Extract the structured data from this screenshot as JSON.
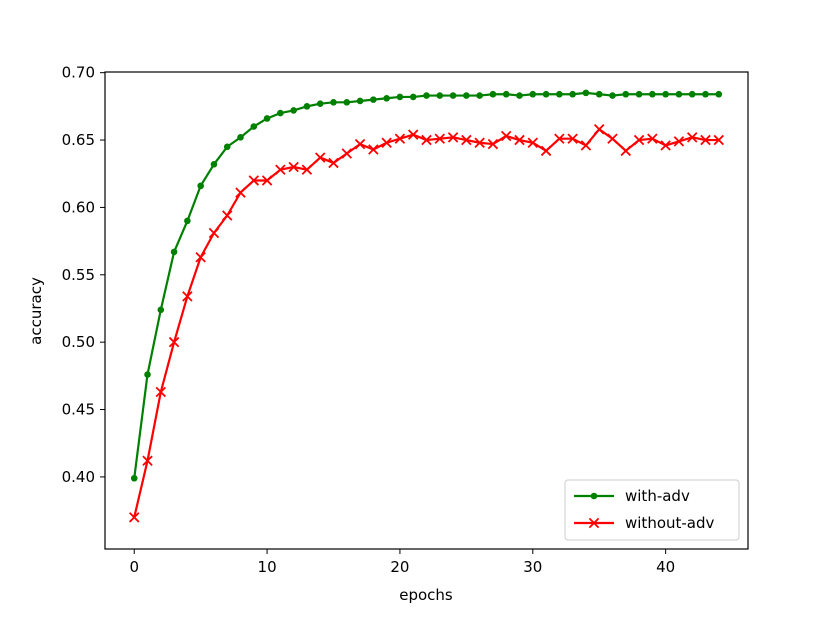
{
  "chart_data": {
    "type": "line",
    "title": "",
    "xlabel": "epochs",
    "ylabel": "accuracy",
    "xlim": [
      -2.2,
      46.2
    ],
    "ylim": [
      0.3465,
      0.7005
    ],
    "xticks": [
      0,
      10,
      20,
      30,
      40
    ],
    "xtick_labels": [
      "0",
      "10",
      "20",
      "30",
      "40"
    ],
    "yticks": [
      0.4,
      0.45,
      0.5,
      0.55,
      0.6,
      0.65,
      0.7
    ],
    "ytick_labels": [
      "0.40",
      "0.45",
      "0.50",
      "0.55",
      "0.60",
      "0.65",
      "0.70"
    ],
    "grid": false,
    "legend_position": "bottom-right",
    "x": [
      0,
      1,
      2,
      3,
      4,
      5,
      6,
      7,
      8,
      9,
      10,
      11,
      12,
      13,
      14,
      15,
      16,
      17,
      18,
      19,
      20,
      21,
      22,
      23,
      24,
      25,
      26,
      27,
      28,
      29,
      30,
      31,
      32,
      33,
      34,
      35,
      36,
      37,
      38,
      39,
      40,
      41,
      42,
      43,
      44
    ],
    "series": [
      {
        "name": "with-adv",
        "color": "#008000",
        "marker": "dot",
        "values": [
          0.399,
          0.476,
          0.524,
          0.567,
          0.59,
          0.616,
          0.632,
          0.645,
          0.652,
          0.66,
          0.666,
          0.67,
          0.672,
          0.675,
          0.677,
          0.678,
          0.678,
          0.679,
          0.68,
          0.681,
          0.682,
          0.682,
          0.683,
          0.683,
          0.683,
          0.683,
          0.683,
          0.684,
          0.684,
          0.683,
          0.684,
          0.684,
          0.684,
          0.684,
          0.685,
          0.684,
          0.683,
          0.684,
          0.684,
          0.684,
          0.684,
          0.684,
          0.684,
          0.684,
          0.684
        ]
      },
      {
        "name": "without-adv",
        "color": "#ff0000",
        "marker": "x",
        "values": [
          0.37,
          0.412,
          0.463,
          0.5,
          0.534,
          0.563,
          0.581,
          0.594,
          0.611,
          0.62,
          0.62,
          0.628,
          0.63,
          0.628,
          0.637,
          0.633,
          0.64,
          0.647,
          0.643,
          0.648,
          0.651,
          0.654,
          0.65,
          0.651,
          0.652,
          0.65,
          0.648,
          0.647,
          0.653,
          0.65,
          0.648,
          0.642,
          0.651,
          0.651,
          0.646,
          0.658,
          0.651,
          0.642,
          0.65,
          0.651,
          0.646,
          0.649,
          0.652,
          0.65,
          0.65
        ]
      }
    ]
  }
}
